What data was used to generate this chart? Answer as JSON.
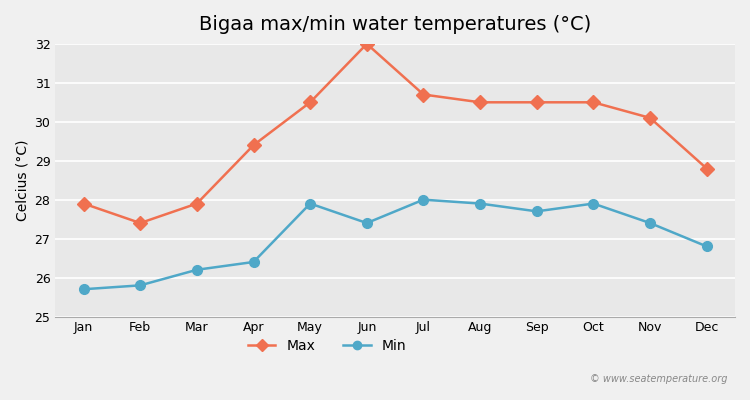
{
  "title": "Bigaa max/min water temperatures (°C)",
  "ylabel": "Celcius (°C)",
  "months": [
    "Jan",
    "Feb",
    "Mar",
    "Apr",
    "May",
    "Jun",
    "Jul",
    "Aug",
    "Sep",
    "Oct",
    "Nov",
    "Dec"
  ],
  "max_temps": [
    27.9,
    27.4,
    27.9,
    29.4,
    30.5,
    32.0,
    30.7,
    30.5,
    30.5,
    30.5,
    30.1,
    28.8
  ],
  "min_temps": [
    25.7,
    25.8,
    26.2,
    26.4,
    27.9,
    27.4,
    28.0,
    27.9,
    27.7,
    27.9,
    27.4,
    26.8
  ],
  "max_color": "#f07050",
  "min_color": "#4fa8c8",
  "bg_color": "#f0f0f0",
  "plot_bg": "#e8e8e8",
  "grid_color": "#ffffff",
  "ylim": [
    25,
    32
  ],
  "yticks": [
    25,
    26,
    27,
    28,
    29,
    30,
    31,
    32
  ],
  "watermark": "© www.seatemperature.org",
  "title_fontsize": 14,
  "label_fontsize": 10,
  "tick_fontsize": 9
}
